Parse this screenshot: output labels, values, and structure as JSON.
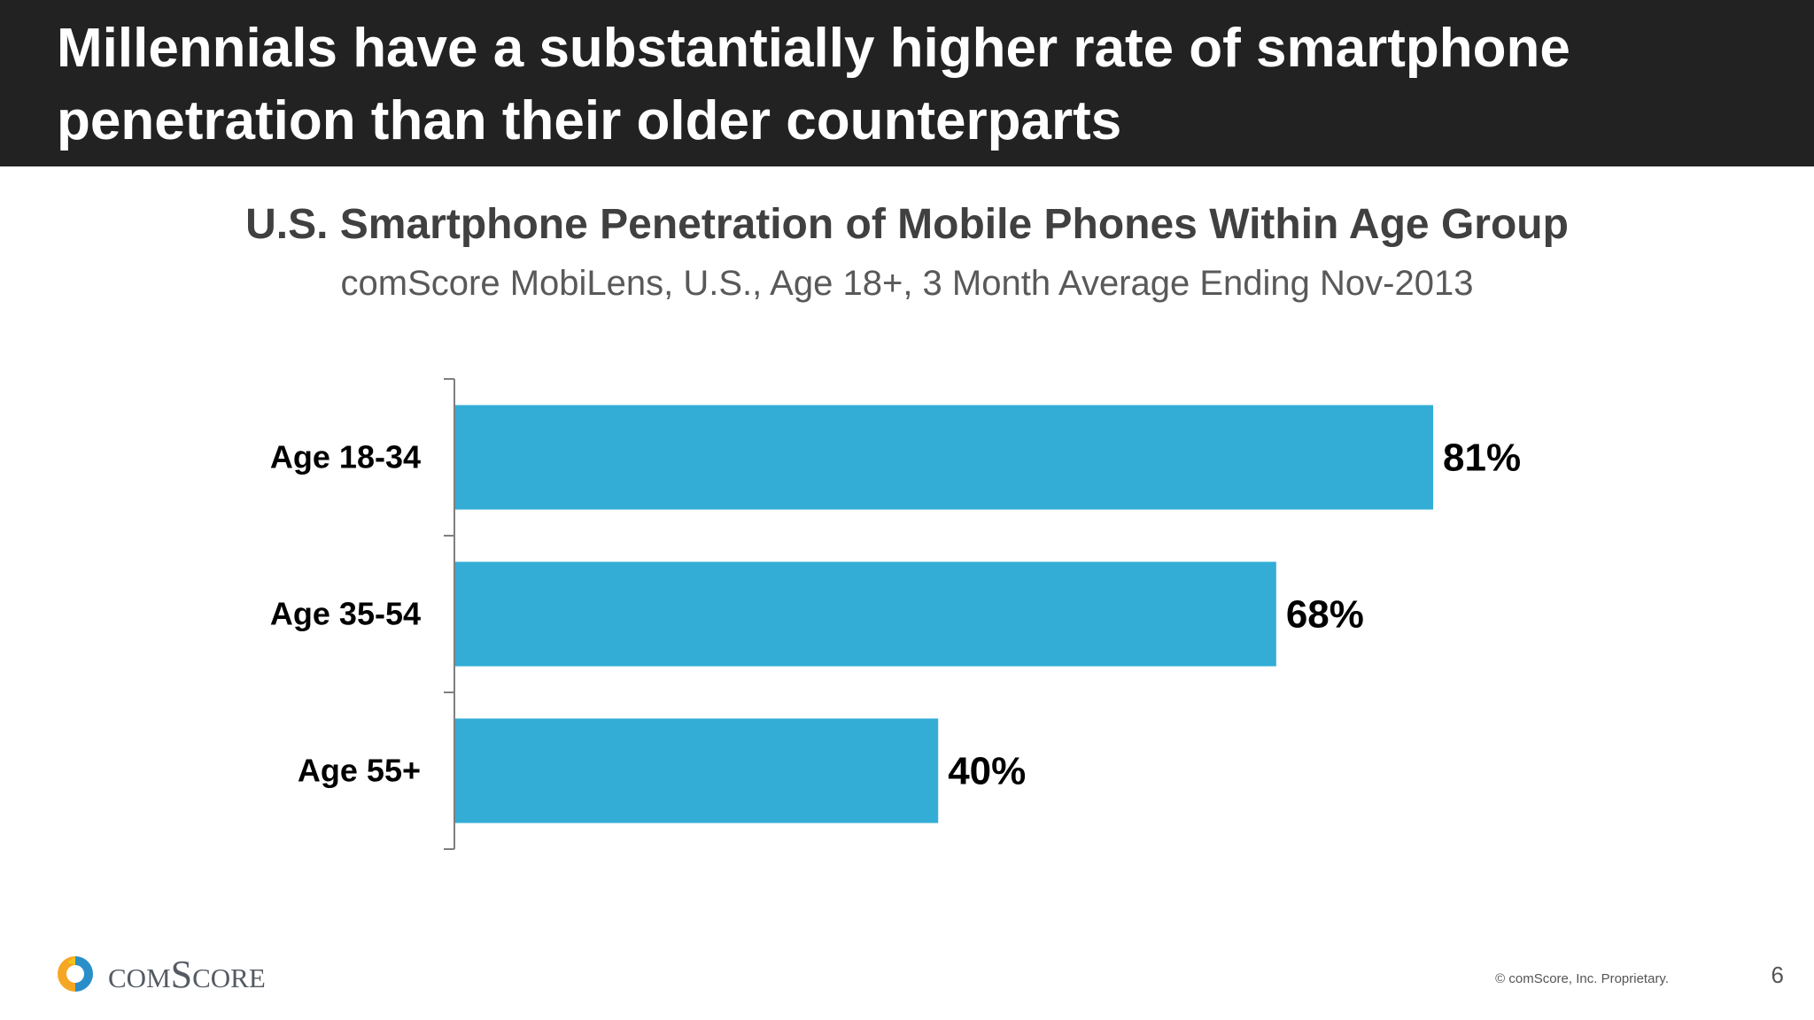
{
  "slide": {
    "title": "Millennials have a substantially higher rate of smartphone penetration than their older counterparts",
    "page_number": "6",
    "copyright": "© comScore, Inc. Proprietary.",
    "logo_text": "comScore"
  },
  "colors": {
    "header_bg": "#222222",
    "bar": "#33add6",
    "logo_orange": "#f5a623",
    "logo_blue": "#2a8ec9"
  },
  "chart_data": {
    "type": "bar",
    "orientation": "horizontal",
    "title": "U.S. Smartphone Penetration of Mobile Phones Within Age Group",
    "subtitle": "comScore MobiLens, U.S., Age 18+, 3 Month Average Ending Nov-2013",
    "categories": [
      "Age 18-34",
      "Age 35-54",
      "Age 55+"
    ],
    "values": [
      81,
      68,
      40
    ],
    "data_labels": [
      "81%",
      "68%",
      "40%"
    ],
    "unit": "%",
    "xlim": [
      0,
      100
    ],
    "xlabel": "",
    "ylabel": "",
    "grid": false,
    "legend": "none"
  }
}
